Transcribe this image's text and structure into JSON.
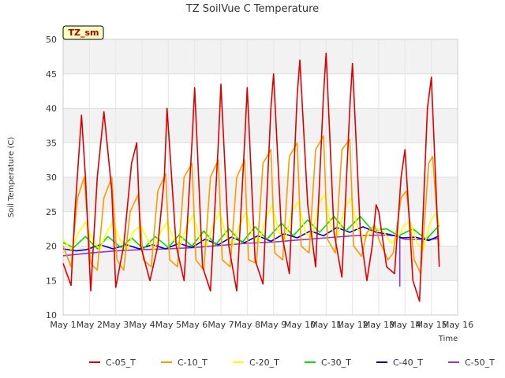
{
  "chart_data": {
    "type": "line",
    "title": "TZ SoilVue C Temperature",
    "xlabel": "Time",
    "ylabel": "Soil Temperature (C)",
    "badge": "TZ_sm",
    "ylim": [
      10,
      50
    ],
    "yticks": [
      10,
      15,
      20,
      25,
      30,
      35,
      40,
      45,
      50
    ],
    "xlim": [
      1,
      16
    ],
    "xticks": [
      {
        "value": 1,
        "label": "May 1"
      },
      {
        "value": 2,
        "label": "May 2"
      },
      {
        "value": 3,
        "label": "May 3"
      },
      {
        "value": 4,
        "label": "May 4"
      },
      {
        "value": 5,
        "label": "May 5"
      },
      {
        "value": 6,
        "label": "May 6"
      },
      {
        "value": 7,
        "label": "May 7"
      },
      {
        "value": 8,
        "label": "May 8"
      },
      {
        "value": 9,
        "label": "May 9"
      },
      {
        "value": 10,
        "label": "May 10"
      },
      {
        "value": 11,
        "label": "May 11"
      },
      {
        "value": 12,
        "label": "May 12"
      },
      {
        "value": 13,
        "label": "May 13"
      },
      {
        "value": 14,
        "label": "May 14"
      },
      {
        "value": 15,
        "label": "May 15"
      },
      {
        "value": 16,
        "label": "May 16"
      }
    ],
    "grid": true,
    "legend_position": "bottom",
    "series": [
      {
        "name": "C-05_T",
        "color": "#dd0000",
        "x": [
          1.0,
          1.3,
          1.45,
          1.7,
          1.85,
          2.05,
          2.3,
          2.55,
          2.85,
          3.0,
          3.3,
          3.6,
          3.8,
          3.95,
          4.3,
          4.6,
          4.85,
          4.95,
          5.3,
          5.6,
          5.9,
          6.0,
          6.3,
          6.6,
          6.9,
          7.0,
          7.3,
          7.6,
          7.9,
          8.0,
          8.3,
          8.6,
          8.9,
          9.0,
          9.3,
          9.6,
          9.9,
          10.0,
          10.3,
          10.6,
          10.9,
          11.0,
          11.3,
          11.6,
          11.9,
          12.0,
          12.3,
          12.55,
          12.75,
          12.9,
          13.0,
          13.3,
          13.6,
          13.85,
          14.0,
          14.3,
          14.55,
          14.85,
          15.0,
          15.3
        ],
        "values": [
          17.5,
          14.3,
          25,
          39,
          30,
          13.5,
          30,
          39.5,
          28,
          14,
          20,
          32,
          35,
          20,
          15,
          20,
          30,
          40,
          20,
          15,
          35,
          43,
          17,
          13.5,
          35,
          43.5,
          20,
          13.5,
          35,
          43,
          18,
          14.5,
          40,
          45,
          22,
          16,
          42,
          47,
          26,
          17,
          42,
          48,
          22,
          15.5,
          40,
          46.5,
          22,
          15,
          20,
          26,
          25,
          17,
          16,
          30,
          34,
          15,
          12,
          40,
          44.5,
          17
        ]
      },
      {
        "name": "C-10_T",
        "color": "#ff9900",
        "x": [
          1.0,
          1.3,
          1.55,
          1.8,
          2.05,
          2.3,
          2.55,
          2.85,
          3.05,
          3.3,
          3.55,
          3.85,
          4.05,
          4.35,
          4.6,
          4.9,
          5.05,
          5.35,
          5.6,
          5.9,
          6.05,
          6.35,
          6.6,
          6.9,
          7.05,
          7.35,
          7.6,
          7.9,
          8.05,
          8.35,
          8.6,
          8.9,
          9.05,
          9.35,
          9.6,
          9.9,
          10.05,
          10.35,
          10.6,
          10.9,
          11.05,
          11.35,
          11.6,
          11.9,
          12.05,
          12.35,
          12.55,
          12.85,
          13.0,
          13.35,
          13.55,
          13.85,
          14.05,
          14.35,
          14.6,
          14.9,
          15.05,
          15.3
        ],
        "values": [
          20,
          17,
          27,
          30,
          17.5,
          16.5,
          27,
          30,
          18,
          16.5,
          25,
          27.5,
          18,
          17,
          28,
          30.5,
          18,
          17,
          30,
          32,
          18,
          16.5,
          30,
          32.5,
          18,
          17,
          30,
          32.5,
          18,
          17.5,
          32,
          34,
          19,
          18,
          33,
          35,
          20,
          19,
          34,
          36,
          21,
          19,
          34,
          35.5,
          20,
          18.5,
          22,
          23,
          21,
          18,
          19,
          27,
          28,
          18,
          16,
          32,
          33,
          20
        ]
      },
      {
        "name": "C-20_T",
        "color": "#ffff00",
        "x": [
          1.0,
          1.3,
          1.6,
          1.85,
          2.1,
          2.4,
          2.65,
          2.9,
          3.15,
          3.45,
          3.65,
          3.95,
          4.2,
          4.45,
          4.7,
          4.95,
          5.2,
          5.45,
          5.7,
          5.95,
          6.2,
          6.45,
          6.7,
          6.95,
          7.2,
          7.45,
          7.7,
          7.95,
          8.2,
          8.45,
          8.7,
          8.95,
          9.2,
          9.45,
          9.7,
          9.95,
          10.2,
          10.45,
          10.7,
          10.95,
          11.2,
          11.45,
          11.7,
          11.95,
          12.2,
          12.45,
          12.7,
          12.95,
          13.2,
          13.45,
          13.7,
          13.95,
          14.2,
          14.45,
          14.7,
          14.95,
          15.2,
          15.3
        ],
        "values": [
          21,
          19.5,
          22,
          23.5,
          21,
          19.5,
          22,
          23.5,
          21,
          19.5,
          22,
          23,
          21,
          19.5,
          22,
          23.5,
          21,
          20,
          23,
          24.5,
          21,
          20,
          23,
          25,
          21.5,
          20,
          23,
          25,
          21.5,
          20.5,
          24,
          26,
          22,
          21,
          25,
          26.5,
          22,
          21,
          26,
          27.5,
          22.5,
          21.5,
          25.5,
          27,
          22.5,
          21,
          22,
          22.5,
          22,
          20.5,
          21,
          23,
          23.5,
          20.5,
          19.5,
          23.5,
          25,
          23
        ]
      },
      {
        "name": "C-30_T",
        "color": "#00dd00",
        "x": [
          1.0,
          1.4,
          1.85,
          2.3,
          2.7,
          3.2,
          3.6,
          4.05,
          4.5,
          5.0,
          5.4,
          5.9,
          6.35,
          6.8,
          7.3,
          7.8,
          8.3,
          8.75,
          9.3,
          9.75,
          10.3,
          10.75,
          11.3,
          11.75,
          12.3,
          12.75,
          13.3,
          13.75,
          14.3,
          14.8,
          15.3
        ],
        "values": [
          20.5,
          19.8,
          21.4,
          19.6,
          21.4,
          19.8,
          21.2,
          19.6,
          21.4,
          19.8,
          21.6,
          20.0,
          22.2,
          20.2,
          22.5,
          20.5,
          22.8,
          21.0,
          23.3,
          21.5,
          23.8,
          22.0,
          24.3,
          22.2,
          24.3,
          22.3,
          22.5,
          21.5,
          22.5,
          21.0,
          23.0
        ]
      },
      {
        "name": "C-40_T",
        "color": "#0000cc",
        "x": [
          1.0,
          1.5,
          1.9,
          2.4,
          2.9,
          3.4,
          3.9,
          4.4,
          4.9,
          5.4,
          5.9,
          6.4,
          6.9,
          7.4,
          7.9,
          8.4,
          8.9,
          9.4,
          9.9,
          10.4,
          10.9,
          11.4,
          11.9,
          12.4,
          12.9,
          13.4,
          13.9,
          14.4,
          14.9,
          15.3
        ],
        "values": [
          19.6,
          19.3,
          19.5,
          20.2,
          19.6,
          20.2,
          19.6,
          20.2,
          19.6,
          20.4,
          19.8,
          21.0,
          20.2,
          21.3,
          20.5,
          21.5,
          20.7,
          21.8,
          21.2,
          22.2,
          21.5,
          22.7,
          22.0,
          22.8,
          22.0,
          21.7,
          21.2,
          21.3,
          20.8,
          21.5
        ]
      },
      {
        "name": "C-50_T",
        "color": "#9933cc",
        "x": [
          1.0,
          2.0,
          3.0,
          4.0,
          5.0,
          6.0,
          7.0,
          8.0,
          9.0,
          10.0,
          11.0,
          12.0,
          13.0,
          13.8,
          13.8,
          13.8,
          14.0,
          15.0,
          15.3
        ],
        "values": [
          18.6,
          19.0,
          19.3,
          19.5,
          19.6,
          19.8,
          20.1,
          20.4,
          20.6,
          20.9,
          21.2,
          21.5,
          21.6,
          21.5,
          14.2,
          21.2,
          21.0,
          21.0,
          21.1
        ]
      }
    ]
  }
}
